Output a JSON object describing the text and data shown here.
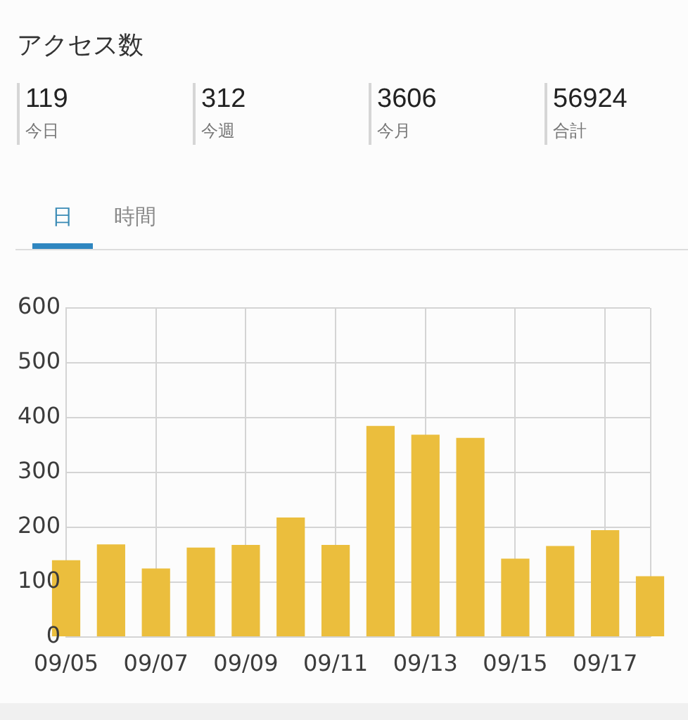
{
  "chart_data": [
    {
      "type": "other",
      "title": "アクセス数",
      "categories": [
        "今日",
        "今週",
        "今月",
        "合計"
      ],
      "values": [
        119,
        312,
        3606,
        56924
      ],
      "data_labels": true
    },
    {
      "type": "bar",
      "annotations": [
        "日",
        "時間"
      ],
      "categories": [
        "09/05",
        null,
        "09/07",
        null,
        "09/09",
        null,
        "09/11",
        null,
        "09/13",
        null,
        "09/15",
        null,
        "09/17",
        null
      ],
      "values": [
        140,
        169,
        125,
        163,
        168,
        218,
        168,
        385,
        369,
        363,
        143,
        166,
        195,
        111
      ],
      "color": "#ebbe3d",
      "ylim": [
        0,
        600
      ],
      "yticks": [
        0,
        100,
        200,
        300,
        400,
        500,
        600
      ],
      "grid": true
    }
  ]
}
